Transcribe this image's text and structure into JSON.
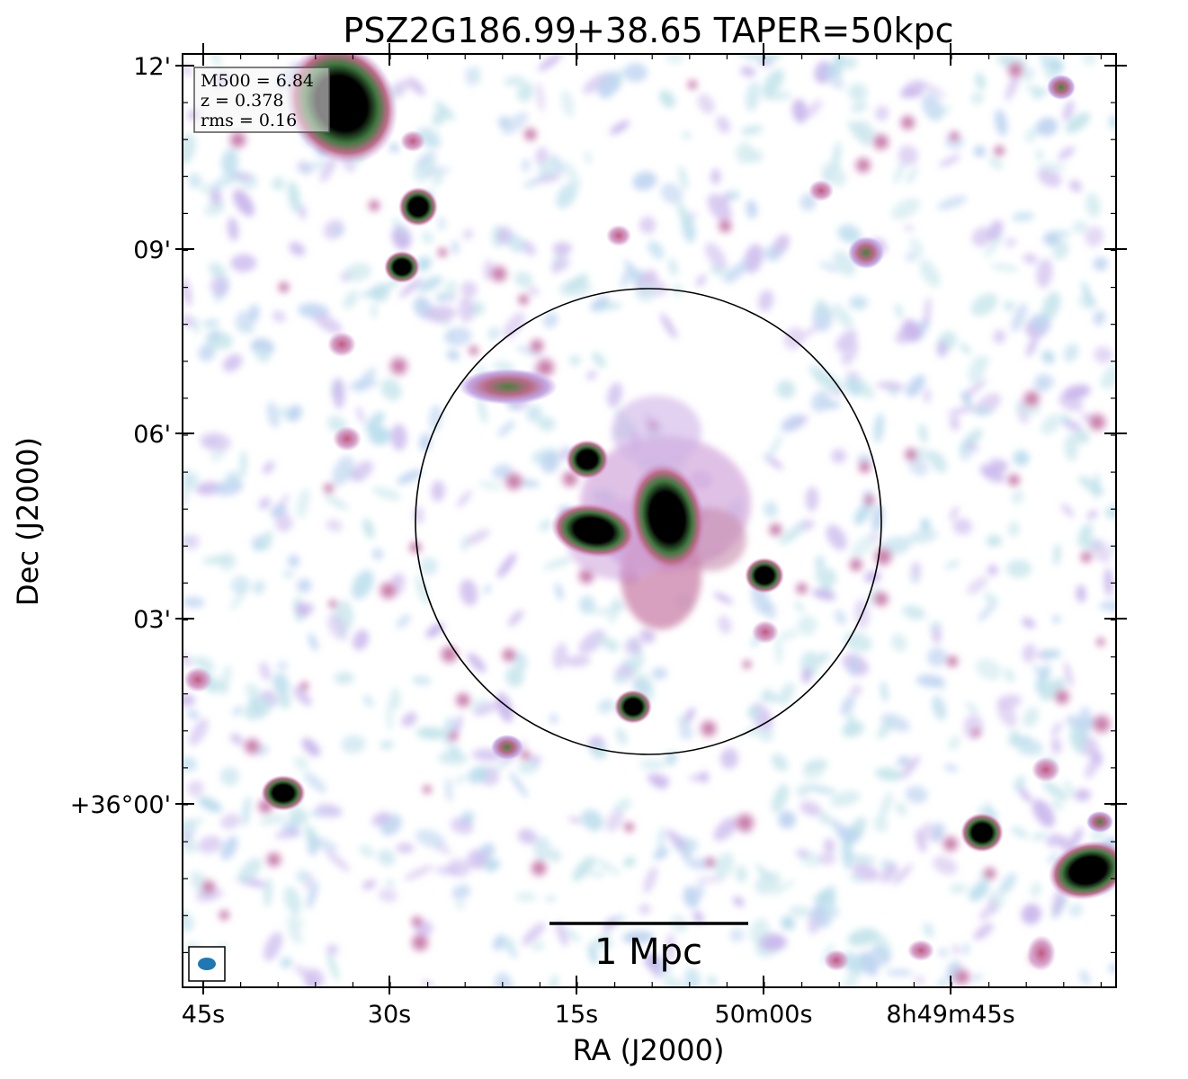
{
  "chart_data": {
    "type": "heatmap",
    "title": "PSZ2G186.99+38.65 TAPER=50kpc",
    "xlabel": "RA (J2000)",
    "ylabel": "Dec (J2000)",
    "x_ticks": [
      "45s",
      "30s",
      "15s",
      "50m00s",
      "8h49m45s"
    ],
    "y_ticks": [
      "12'",
      "09'",
      "06'",
      "03'",
      "+36°00'"
    ],
    "colormap": "cubehelix-like (white → light blue → lavender → pink → green → black)",
    "colors": {
      "low": "#ffffff",
      "faint": "#bfe0e8",
      "mid": "#b9a6e6",
      "pink": "#c96a8e",
      "high": "#3a7a3a",
      "peak": "#000000"
    },
    "info_box": {
      "m500": "M500 = 6.84",
      "z": "z = 0.378",
      "rms": "rms = 0.16"
    },
    "scale_bar": {
      "label": "1 Mpc"
    },
    "overlays": [
      "circle",
      "beam-ellipse"
    ],
    "grid": false
  }
}
